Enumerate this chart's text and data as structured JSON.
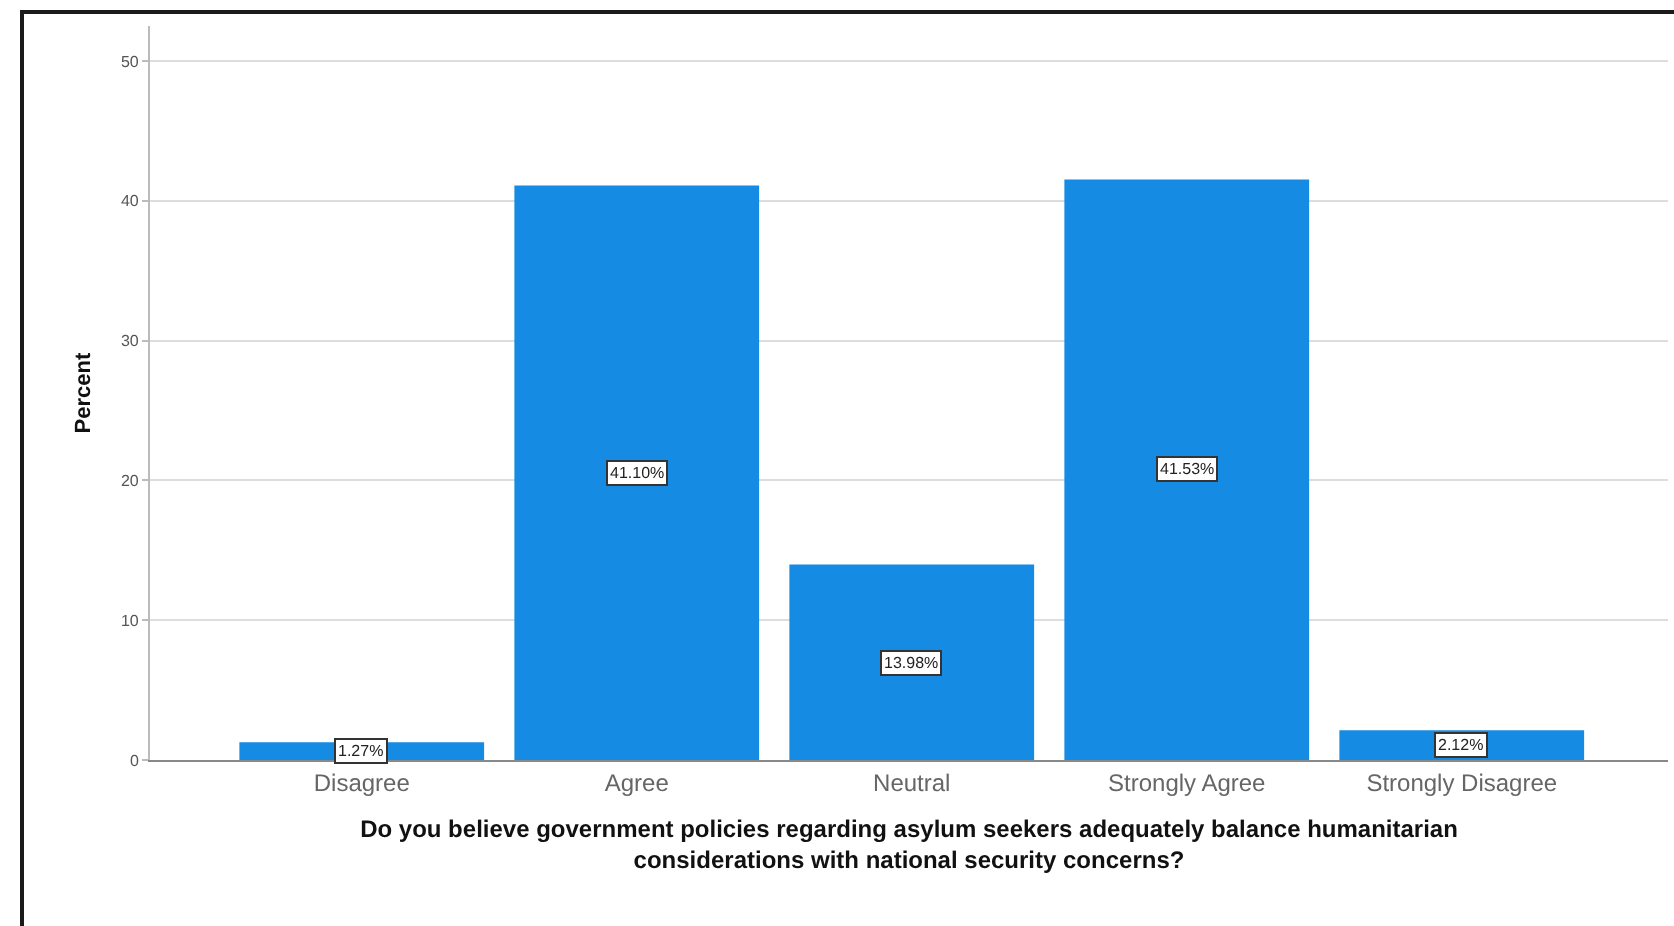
{
  "chart_data": {
    "type": "bar",
    "categories": [
      "Disagree",
      "Agree",
      "Neutral",
      "Strongly Agree",
      "Strongly Disagree"
    ],
    "values": [
      1.27,
      41.1,
      13.98,
      41.53,
      2.12
    ],
    "value_labels": [
      "1.27%",
      "41.10%",
      "13.98%",
      "41.53%",
      "2.12%"
    ],
    "color": "#168be4",
    "xlabel": "Do you believe government policies regarding asylum seekers adequately balance humanitarian considerations with national security concerns?",
    "ylabel": "Percent",
    "ylim": [
      0,
      52.5
    ],
    "yticks": [
      0,
      10,
      20,
      30,
      40,
      50
    ],
    "grid": "y"
  }
}
